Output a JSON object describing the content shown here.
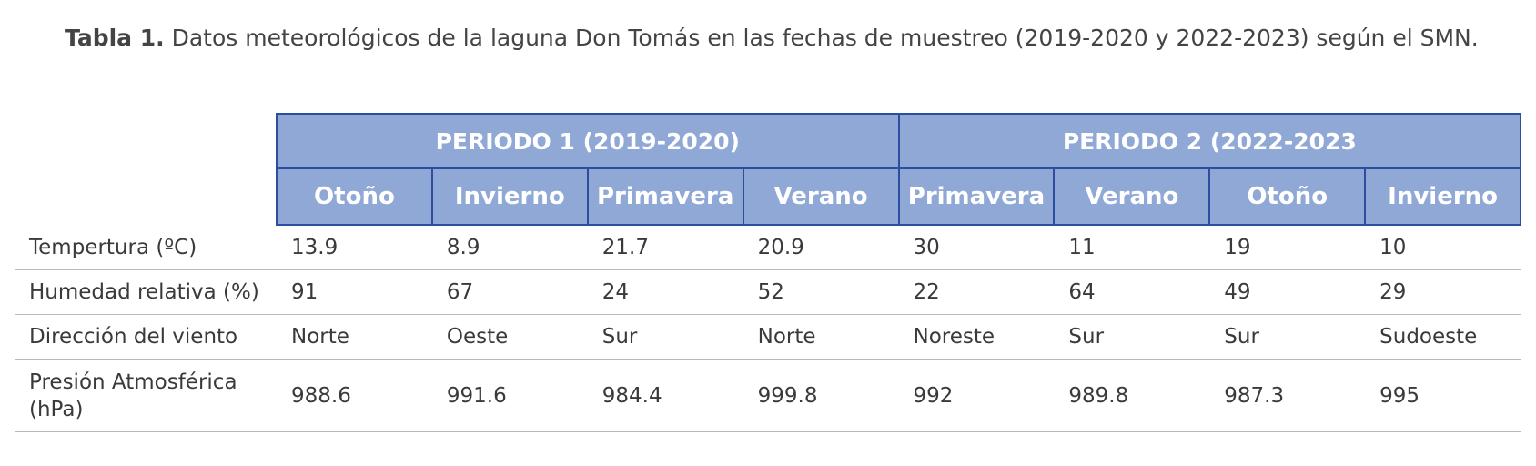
{
  "caption": {
    "label": "Tabla 1.",
    "text": " Datos meteorológicos de la laguna Don Tomás en las fechas de muestreo (2019-2020 y 2022-2023) según el SMN."
  },
  "colors": {
    "header_background": "#8fa8d6",
    "header_border": "#2d4ea0",
    "header_text": "#ffffff",
    "row_divider": "#b8b8b8"
  },
  "table": {
    "periods": [
      "PERIODO 1 (2019-2020)",
      "PERIODO 2 (2022-2023"
    ],
    "seasons": [
      "Otoño",
      "Invierno",
      "Primavera",
      "Verano",
      "Primavera",
      "Verano",
      "Otoño",
      "Invierno"
    ],
    "rows": [
      {
        "label": "Tempertura (ºC)",
        "values": [
          "13.9",
          "8.9",
          "21.7",
          "20.9",
          "30",
          "11",
          "19",
          "10"
        ]
      },
      {
        "label": "Humedad relativa (%)",
        "values": [
          "91",
          "67",
          "24",
          "52",
          "22",
          "64",
          "49",
          "29"
        ]
      },
      {
        "label": "Dirección del viento",
        "values": [
          "Norte",
          "Oeste",
          "Sur",
          "Norte",
          "Noreste",
          "Sur",
          "Sur",
          "Sudoeste"
        ]
      },
      {
        "label": "Presión Atmosférica (hPa)",
        "values": [
          "988.6",
          "991.6",
          "984.4",
          "999.8",
          "992",
          "989.8",
          "987.3",
          "995"
        ]
      }
    ]
  }
}
